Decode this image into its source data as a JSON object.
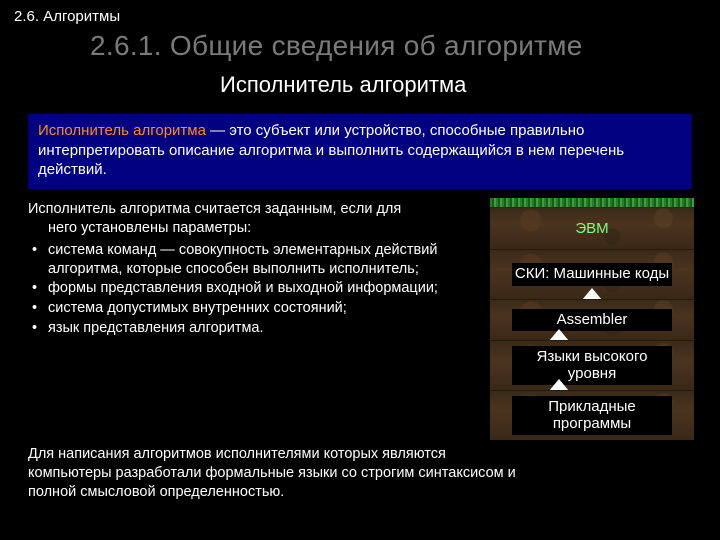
{
  "breadcrumb": "2.6. Алгоритмы",
  "title": "2.6.1. Общие сведения об алгоритме",
  "subtitle": "Исполнитель алгоритма",
  "definition": {
    "term": "Исполнитель алгоритма",
    "text": " — это субъект или устройство, способные правильно интерпретировать описание алгоритма и выполнить содержащийся в нем перечень действий."
  },
  "params": {
    "lead_line1": "Исполнитель алгоритма считается заданным, если для",
    "lead_line2": "него установлены параметры:",
    "items": [
      "система команд — совокупность элементарных действий алгоритма, которые способен выполнить исполнитель;",
      "формы представления входной и выходной информации;",
      "система допустимых внутренних состояний;",
      "язык представления алгоритма."
    ]
  },
  "footnote": "Для написания алгоритмов исполнителями которых являются компьютеры разработали формальные языки со строгим синтаксисом и полной смысловой определенностью.",
  "stack": {
    "top_label": "ЭВМ",
    "layers": [
      "СКИ: Машинные коды",
      "Assembler",
      "Языки высокого уровня",
      "Прикладные программы"
    ]
  },
  "colors": {
    "background": "#000000",
    "title": "#7a7a7a",
    "definition_bg": "#000080",
    "term": "#ff8c1a",
    "top_label": "#7cff7c",
    "band_bg": "#000000",
    "text": "#ffffff"
  },
  "fonts": {
    "family": "Arial",
    "title_size": 28,
    "subtitle_size": 22,
    "body_size": 15
  }
}
